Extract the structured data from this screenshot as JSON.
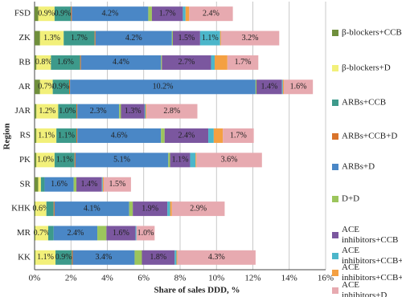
{
  "chart_data": {
    "type": "stacked-barh",
    "xlabel": "Share of sales DDD, %",
    "ylabel": "Region",
    "categories": [
      "FSD",
      "ZK",
      "RB",
      "AR",
      "JAR",
      "RS",
      "PK",
      "SR",
      "KHK",
      "MR",
      "KK"
    ],
    "xlim": [
      0,
      16
    ],
    "xticks": [
      {
        "value": 0,
        "label": "0%"
      },
      {
        "value": 2,
        "label": "2%"
      },
      {
        "value": 4,
        "label": "4%"
      },
      {
        "value": 6,
        "label": "6%"
      },
      {
        "value": 8,
        "label": "8%"
      },
      {
        "value": 10,
        "label": "10%"
      },
      {
        "value": 12,
        "label": "12%"
      },
      {
        "value": 14,
        "label": "14%"
      },
      {
        "value": 16,
        "label": "16%"
      }
    ],
    "grid": true,
    "legend": "right",
    "series": [
      {
        "name": "β-blockers+CCB",
        "color": "#6f8f3c",
        "values": [
          0.2,
          0.3,
          0.1,
          0.3,
          0.1,
          0.1,
          0.1,
          0.2,
          0.05,
          0.05,
          0.05
        ],
        "value_labels": [
          null,
          null,
          null,
          null,
          null,
          null,
          null,
          null,
          null,
          null,
          null
        ]
      },
      {
        "name": "β-blockers+D",
        "color": "#f2f07a",
        "values": [
          0.9,
          1.3,
          0.8,
          0.7,
          1.2,
          1.1,
          1.0,
          0.15,
          0.6,
          0.7,
          1.1
        ],
        "value_labels": [
          "0.9%",
          "1.3%",
          "0.8%",
          "0.7%",
          "1.2%",
          "1.1%",
          "1.0%",
          null,
          "0.6%",
          "0.7%",
          "1.1%"
        ]
      },
      {
        "name": "ARBs+CCB",
        "color": "#3d9a8b",
        "values": [
          0.9,
          1.7,
          1.6,
          0.9,
          1.0,
          1.1,
          1.1,
          0.2,
          0.4,
          0.3,
          0.9
        ],
        "value_labels": [
          "0.9%",
          "1.7%",
          "1.6%",
          "0.9%",
          "1.0%",
          "1.1%",
          "1.1%",
          null,
          null,
          null,
          "0.9%"
        ]
      },
      {
        "name": "ARBs+CCB+D",
        "color": "#d9732b",
        "values": [
          0.05,
          0.05,
          0.05,
          0.05,
          0.05,
          0.05,
          0.05,
          0,
          0.05,
          0,
          0.05
        ],
        "value_labels": [
          null,
          null,
          null,
          null,
          null,
          null,
          null,
          null,
          null,
          null,
          null
        ]
      },
      {
        "name": "ARBs+D",
        "color": "#4a87c6",
        "values": [
          4.2,
          4.2,
          4.4,
          10.2,
          2.3,
          4.6,
          5.1,
          1.6,
          4.1,
          2.4,
          3.4
        ],
        "value_labels": [
          "4.2%",
          "4.2%",
          "4.4%",
          "10.2%",
          "2.3%",
          "4.6%",
          "5.1%",
          "1.6%",
          "4.1%",
          "2.4%",
          "3.4%"
        ]
      },
      {
        "name": "D+D",
        "color": "#9cc55c",
        "values": [
          0.2,
          0.05,
          0.05,
          0.05,
          0.1,
          0.2,
          0.1,
          0.15,
          0.2,
          0.5,
          0.4
        ],
        "value_labels": [
          null,
          null,
          null,
          null,
          null,
          null,
          null,
          null,
          null,
          null,
          null
        ]
      },
      {
        "name": "ACE inhibitors+CCB",
        "color": "#7b579f",
        "values": [
          1.7,
          1.5,
          2.7,
          1.4,
          1.3,
          2.4,
          1.1,
          1.4,
          1.9,
          1.6,
          1.8
        ],
        "value_labels": [
          "1.7%",
          "1.5%",
          "2.7%",
          "1.4%",
          "1.3%",
          "2.4%",
          "1.1%",
          "1.4%",
          "1.9%",
          "1.6%",
          "1.8%"
        ]
      },
      {
        "name": "ACE inhibitors+CCB+D",
        "color": "#4cb6ca",
        "values": [
          0.15,
          1.1,
          0.2,
          0.05,
          0.05,
          0.3,
          0.3,
          0.05,
          0.15,
          0.05,
          0.1
        ],
        "value_labels": [
          null,
          "1.1%",
          null,
          null,
          null,
          null,
          null,
          null,
          null,
          null,
          null
        ]
      },
      {
        "name": "ACE inhibitors+CCB+S",
        "color": "#f4a042",
        "values": [
          0.2,
          0.05,
          0.7,
          0.05,
          0.05,
          0.5,
          0.05,
          0.05,
          0.1,
          0,
          0.05
        ],
        "value_labels": [
          null,
          null,
          null,
          null,
          null,
          null,
          null,
          null,
          null,
          null,
          null
        ]
      },
      {
        "name": "ACE inhibitors+D",
        "color": "#e7aab0",
        "values": [
          2.4,
          3.2,
          1.7,
          1.6,
          2.8,
          1.7,
          3.6,
          1.5,
          2.9,
          1.0,
          4.3
        ],
        "value_labels": [
          "2.4%",
          "3.2%",
          "1.7%",
          "1.6%",
          "2.8%",
          "1.7%",
          "3.6%",
          "1.5%",
          "2.9%",
          "1.0%",
          "4.3%"
        ]
      }
    ]
  }
}
